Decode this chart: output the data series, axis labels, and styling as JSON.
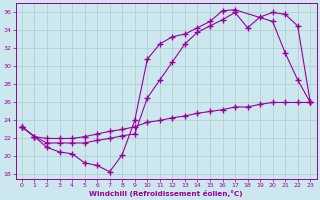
{
  "xlabel": "Windchill (Refroidissement éolien,°C)",
  "bg_color": "#cce8ee",
  "line_color": "#990099",
  "grid_color": "#aacccc",
  "xlim": [
    -0.5,
    23.5
  ],
  "ylim": [
    17.5,
    37.0
  ],
  "yticks": [
    18,
    20,
    22,
    24,
    26,
    28,
    30,
    32,
    34,
    36
  ],
  "xticks": [
    0,
    1,
    2,
    3,
    4,
    5,
    6,
    7,
    8,
    9,
    10,
    11,
    12,
    13,
    14,
    15,
    16,
    17,
    18,
    19,
    20,
    21,
    22,
    23
  ],
  "curve1_x": [
    0,
    1,
    2,
    3,
    4,
    5,
    6,
    7,
    8,
    9,
    10,
    11,
    12,
    13,
    14,
    15,
    16,
    17,
    20,
    21,
    22,
    23
  ],
  "curve1_y": [
    23.3,
    22.2,
    21.0,
    20.5,
    20.3,
    19.3,
    19.0,
    18.3,
    20.2,
    24.0,
    30.8,
    32.5,
    33.3,
    33.6,
    34.3,
    35.0,
    36.2,
    36.3,
    35.0,
    31.5,
    28.5,
    26.0
  ],
  "curve2_x": [
    0,
    1,
    2,
    3,
    4,
    5,
    6,
    7,
    8,
    9,
    10,
    11,
    12,
    13,
    14,
    15,
    16,
    17,
    18,
    19,
    20,
    21,
    22,
    23
  ],
  "curve2_y": [
    23.3,
    22.2,
    21.5,
    21.5,
    21.5,
    21.5,
    21.8,
    22.0,
    22.3,
    22.5,
    26.5,
    28.5,
    30.5,
    32.5,
    33.8,
    34.5,
    35.2,
    36.0,
    34.3,
    35.5,
    36.0,
    35.8,
    34.5,
    26.0
  ],
  "curve3_x": [
    0,
    1,
    2,
    3,
    4,
    5,
    6,
    7,
    8,
    9,
    10,
    11,
    12,
    13,
    14,
    15,
    16,
    17,
    18,
    19,
    20,
    21,
    22,
    23
  ],
  "curve3_y": [
    23.3,
    22.2,
    22.0,
    22.0,
    22.0,
    22.2,
    22.5,
    22.8,
    23.0,
    23.3,
    23.8,
    24.0,
    24.3,
    24.5,
    24.8,
    25.0,
    25.2,
    25.5,
    25.5,
    25.8,
    26.0,
    26.0,
    26.0,
    26.0
  ]
}
